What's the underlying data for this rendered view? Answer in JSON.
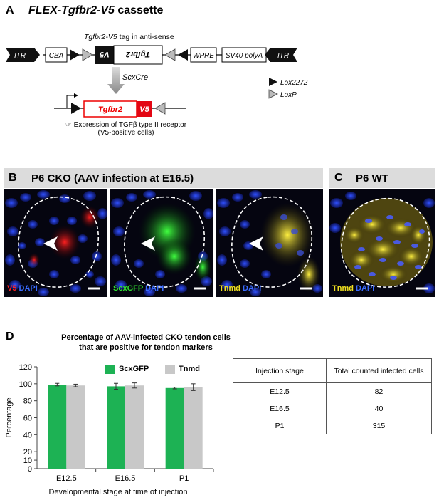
{
  "panel_a": {
    "letter": "A",
    "title_italic": "FLEX-Tgfbr2-V5",
    "title_rest": " cassette",
    "tag_label_italic": "Tgfbr2-V5",
    "tag_label_rest": " tag in anti-sense",
    "boxes": {
      "itr": "ITR",
      "cba": "CBA",
      "v5_inv": "V5",
      "tgfbr2_inv": "Tgfbr2",
      "wpre": "WPRE",
      "sv40": "SV40 polyA",
      "itr2": "ITR"
    },
    "cre_label": "ScxCre",
    "lox2272_label": "Lox2272",
    "loxp_label": "LoxP",
    "product_tgfbr2": "Tgfbr2",
    "product_v5": "V5",
    "expression_line1": "☞ Expression of TGFβ type II receptor",
    "expression_line2": "(V5-positive cells)"
  },
  "panel_b": {
    "letter": "B",
    "title": "P6 CKO (AAV infection at E16.5)",
    "img1_label_a": "V5",
    "img1_label_b": "DAPI",
    "img2_label_a": "ScxGFP",
    "img2_label_b": "DAPI",
    "img3_label_a": "Tnmd",
    "img3_label_b": "DAPI"
  },
  "panel_c": {
    "letter": "C",
    "title": "P6 WT",
    "label_a": "Tnmd",
    "label_b": "DAPI"
  },
  "panel_d": {
    "letter": "D",
    "legend_scxgfp": "ScxGFP",
    "legend_tnmd": "Tnmd"
  },
  "chart_data": {
    "type": "bar",
    "title": "Percentage of AAV-infected CKO tendon cells that are positive for tendon markers",
    "title_line1": "Percentage of AAV-infected CKO tendon cells",
    "title_line2": "that are positive for tendon markers",
    "xlabel": "Developmental stage at time of injection",
    "ylabel": "Percentage",
    "ylim": [
      0,
      120
    ],
    "yticks": [
      "0",
      "10",
      "20",
      "40",
      "60",
      "80",
      "100",
      "120"
    ],
    "ytick_values": [
      0,
      10,
      20,
      40,
      60,
      80,
      100,
      120
    ],
    "categories": [
      "E12.5",
      "E16.5",
      "P1"
    ],
    "series": [
      {
        "name": "ScxGFP",
        "color": "#1db254",
        "values": [
          99,
          97,
          95
        ],
        "errors": [
          1.5,
          3.5,
          1
        ]
      },
      {
        "name": "Tnmd",
        "color": "#c8c8c8",
        "values": [
          98,
          98,
          96
        ],
        "errors": [
          1.5,
          3,
          4
        ]
      }
    ],
    "legend": "top-right",
    "grid": false
  },
  "table": {
    "header_col1": "Injection stage",
    "header_col2": "Total counted infected cells",
    "rows": [
      {
        "stage": "E12.5",
        "count": "82"
      },
      {
        "stage": "E16.5",
        "count": "40"
      },
      {
        "stage": "P1",
        "count": "315"
      }
    ]
  }
}
